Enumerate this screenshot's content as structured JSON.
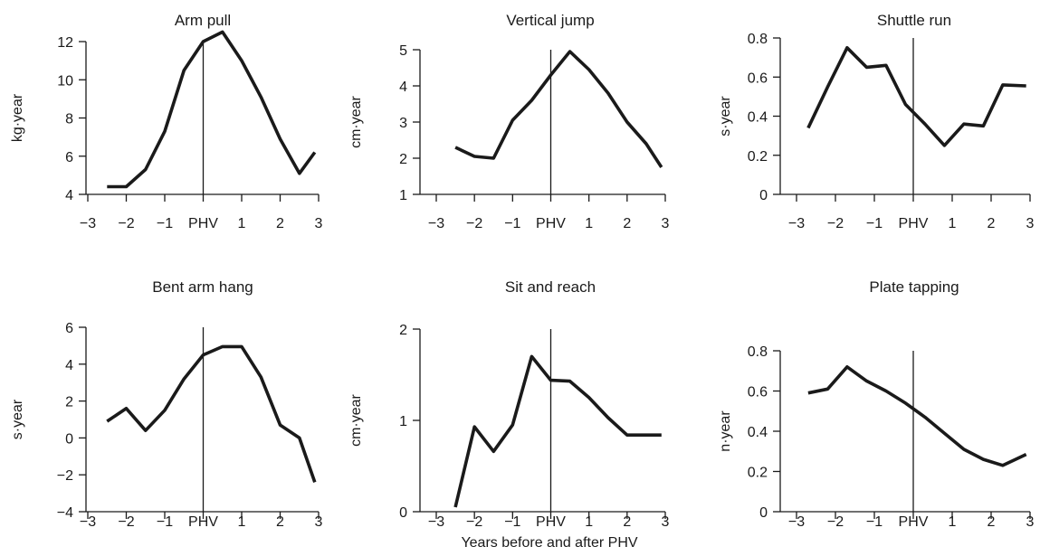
{
  "figure": {
    "xlabel": "Years before and after PHV",
    "line_color": "#1a1a1a"
  },
  "chart_data": [
    {
      "type": "line",
      "title": "Arm pull",
      "ylabel": "kg·year",
      "xlim": [
        -3,
        3
      ],
      "ylim": [
        4,
        12.5
      ],
      "xticks": [
        -3,
        -2,
        -1,
        0,
        1,
        2,
        3
      ],
      "xtick_labels": [
        "−3",
        "−2",
        "−1",
        "PHV",
        "1",
        "2",
        "3"
      ],
      "yticks": [
        4,
        6,
        8,
        10,
        12
      ],
      "ytick_labels": [
        "4",
        "6",
        "8",
        "10",
        "12"
      ],
      "phv_line": 0,
      "x": [
        -2.5,
        -2,
        -1.5,
        -1,
        -0.5,
        0,
        0.5,
        1,
        1.5,
        2,
        2.5,
        2.9
      ],
      "y": [
        4.4,
        4.4,
        5.3,
        7.3,
        10.5,
        12.0,
        12.5,
        11.0,
        9.1,
        6.9,
        5.1,
        6.2
      ]
    },
    {
      "type": "line",
      "title": "Vertical jump",
      "ylabel": "cm·year",
      "xlim": [
        -3,
        3
      ],
      "ylim": [
        1,
        5
      ],
      "xticks": [
        -3,
        -2,
        -1,
        0,
        1,
        2,
        3
      ],
      "xtick_labels": [
        "−3",
        "−2",
        "−1",
        "PHV",
        "1",
        "2",
        "3"
      ],
      "yticks": [
        1,
        2,
        3,
        4,
        5
      ],
      "ytick_labels": [
        "1",
        "2",
        "3",
        "4",
        "5"
      ],
      "phv_line": 0,
      "x": [
        -2.5,
        -2,
        -1.5,
        -1,
        -0.5,
        0,
        0.5,
        1,
        1.5,
        2,
        2.5,
        2.9
      ],
      "y": [
        2.3,
        2.05,
        2.0,
        3.05,
        3.6,
        4.3,
        4.95,
        4.45,
        3.8,
        3.0,
        2.4,
        1.75
      ]
    },
    {
      "type": "line",
      "title": "Shuttle run",
      "ylabel": "s·year",
      "xlim": [
        -3,
        3
      ],
      "ylim": [
        0,
        0.8
      ],
      "xticks": [
        -3,
        -2,
        -1,
        0,
        1,
        2,
        3
      ],
      "xtick_labels": [
        "−3",
        "−2",
        "−1",
        "PHV",
        "1",
        "2",
        "3"
      ],
      "yticks": [
        0,
        0.2,
        0.4,
        0.6,
        0.8
      ],
      "ytick_labels": [
        "0",
        "0.2",
        "0.4",
        "0.6",
        "0.8"
      ],
      "phv_line": 0,
      "x": [
        -2.7,
        -2.2,
        -1.7,
        -1.2,
        -0.7,
        -0.2,
        0.3,
        0.8,
        1.3,
        1.8,
        2.3,
        2.9
      ],
      "y": [
        0.34,
        0.55,
        0.75,
        0.65,
        0.66,
        0.46,
        0.36,
        0.25,
        0.36,
        0.35,
        0.56,
        0.555
      ]
    },
    {
      "type": "line",
      "title": "Bent arm hang",
      "ylabel": "s·year",
      "xlim": [
        -3,
        3
      ],
      "ylim": [
        -4,
        6
      ],
      "xticks": [
        -3,
        -2,
        -1,
        0,
        1,
        2,
        3
      ],
      "xtick_labels": [
        "−3",
        "−2",
        "−1",
        "PHV",
        "1",
        "2",
        "3"
      ],
      "yticks": [
        -4,
        -2,
        0,
        2,
        4,
        6
      ],
      "ytick_labels": [
        "−4",
        "−2",
        "0",
        "2",
        "4",
        "6"
      ],
      "phv_line": 0,
      "x": [
        -2.5,
        -2,
        -1.5,
        -1,
        -0.5,
        0,
        0.5,
        1,
        1.5,
        2,
        2.5,
        2.9
      ],
      "y": [
        0.9,
        1.6,
        0.4,
        1.5,
        3.2,
        4.5,
        4.95,
        4.95,
        3.3,
        0.7,
        0.0,
        -2.4
      ]
    },
    {
      "type": "line",
      "title": "Sit and reach",
      "ylabel": "cm·year",
      "xlim": [
        -3,
        3
      ],
      "ylim": [
        0,
        2
      ],
      "xticks": [
        -3,
        -2,
        -1,
        0,
        1,
        2,
        3
      ],
      "xtick_labels": [
        "−3",
        "−2",
        "−1",
        "PHV",
        "1",
        "2",
        "3"
      ],
      "yticks": [
        0,
        1,
        2
      ],
      "ytick_labels": [
        "0",
        "1",
        "2"
      ],
      "phv_line": 0,
      "x": [
        -2.5,
        -2,
        -1.5,
        -1,
        -0.5,
        0,
        0.5,
        1,
        1.5,
        2,
        2.5,
        2.9
      ],
      "y": [
        0.05,
        0.93,
        0.66,
        0.95,
        1.7,
        1.44,
        1.43,
        1.25,
        1.03,
        0.84,
        0.84,
        0.84
      ]
    },
    {
      "type": "line",
      "title": "Plate tapping",
      "ylabel": "n·year",
      "xlim": [
        -3,
        3
      ],
      "ylim": [
        0,
        0.8
      ],
      "xticks": [
        -3,
        -2,
        -1,
        0,
        1,
        2,
        3
      ],
      "xtick_labels": [
        "−3",
        "−2",
        "−1",
        "PHV",
        "1",
        "2",
        "3"
      ],
      "yticks": [
        0,
        0.2,
        0.4,
        0.6,
        0.8
      ],
      "ytick_labels": [
        "0",
        "0.2",
        "0.4",
        "0.6",
        "0.8"
      ],
      "phv_line": 0,
      "x": [
        -2.7,
        -2.2,
        -1.7,
        -1.2,
        -0.7,
        -0.2,
        0.3,
        0.8,
        1.3,
        1.8,
        2.3,
        2.9
      ],
      "y": [
        0.59,
        0.61,
        0.72,
        0.65,
        0.6,
        0.54,
        0.47,
        0.39,
        0.31,
        0.26,
        0.23,
        0.285
      ]
    }
  ]
}
